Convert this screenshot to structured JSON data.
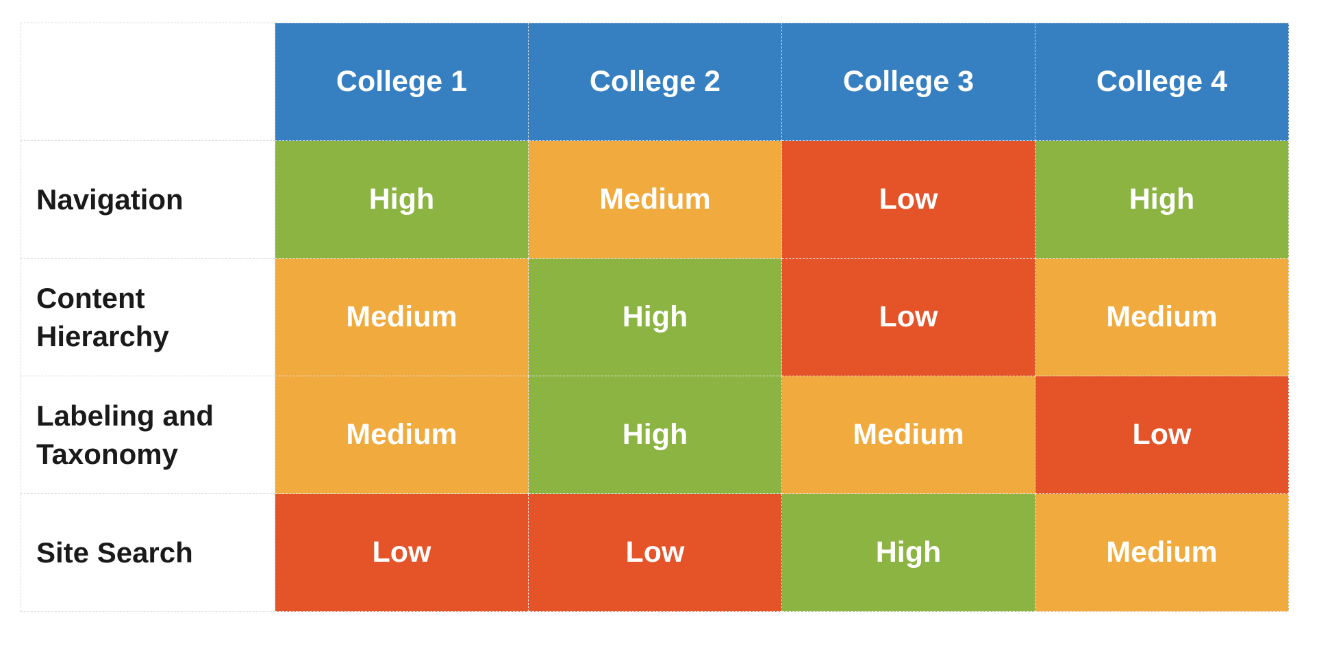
{
  "chart_data": {
    "type": "table",
    "title": "",
    "columns": [
      "College 1",
      "College 2",
      "College 3",
      "College 4"
    ],
    "rows": [
      {
        "label": "Navigation",
        "values": [
          "High",
          "Medium",
          "Low",
          "High"
        ]
      },
      {
        "label": "Content\nHierarchy",
        "values": [
          "Medium",
          "High",
          "Low",
          "Medium"
        ]
      },
      {
        "label": "Labeling and\nTaxonomy",
        "values": [
          "Medium",
          "High",
          "Medium",
          "Low"
        ]
      },
      {
        "label": "Site Search",
        "values": [
          "Low",
          "Low",
          "High",
          "Medium"
        ]
      }
    ]
  },
  "colors": {
    "header": "#367fc1",
    "High": "#8bb443",
    "Medium": "#f0aa3e",
    "Low": "#e55328"
  }
}
